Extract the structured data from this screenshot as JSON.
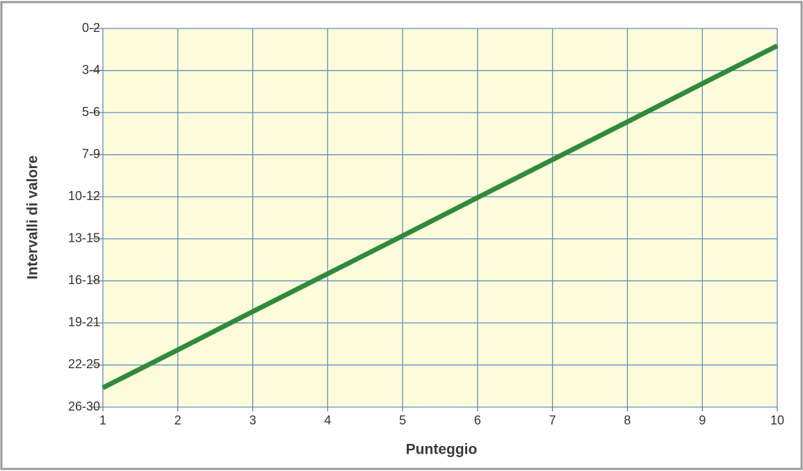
{
  "chart_data": {
    "type": "line",
    "xlabel": "Punteggio",
    "ylabel": "Intervalli di valore",
    "x": [
      1,
      2,
      3,
      4,
      5,
      6,
      7,
      8,
      9,
      10
    ],
    "series": [
      {
        "color": "#2f8a3c",
        "values": [
          0.46,
          1.36,
          2.27,
          3.17,
          4.07,
          4.98,
          5.88,
          6.78,
          7.69,
          8.59
        ]
      }
    ],
    "xlim": [
      1,
      10
    ],
    "xticks": [
      1,
      2,
      3,
      4,
      5,
      6,
      7,
      8,
      9,
      10
    ],
    "ylim": [
      0,
      9
    ],
    "yticks": [
      {
        "value": 0,
        "label": "26-30"
      },
      {
        "value": 1,
        "label": "22-25"
      },
      {
        "value": 2,
        "label": "19-21"
      },
      {
        "value": 3,
        "label": "16-18"
      },
      {
        "value": 4,
        "label": "13-15"
      },
      {
        "value": 5,
        "label": "10-12"
      },
      {
        "value": 6,
        "label": "7-9"
      },
      {
        "value": 7,
        "label": "5-6"
      },
      {
        "value": 8,
        "label": "3-4"
      },
      {
        "value": 9,
        "label": "0-2"
      }
    ],
    "grid": true,
    "grid_color": "#5d8fc2",
    "background": "#fdfbd9"
  }
}
